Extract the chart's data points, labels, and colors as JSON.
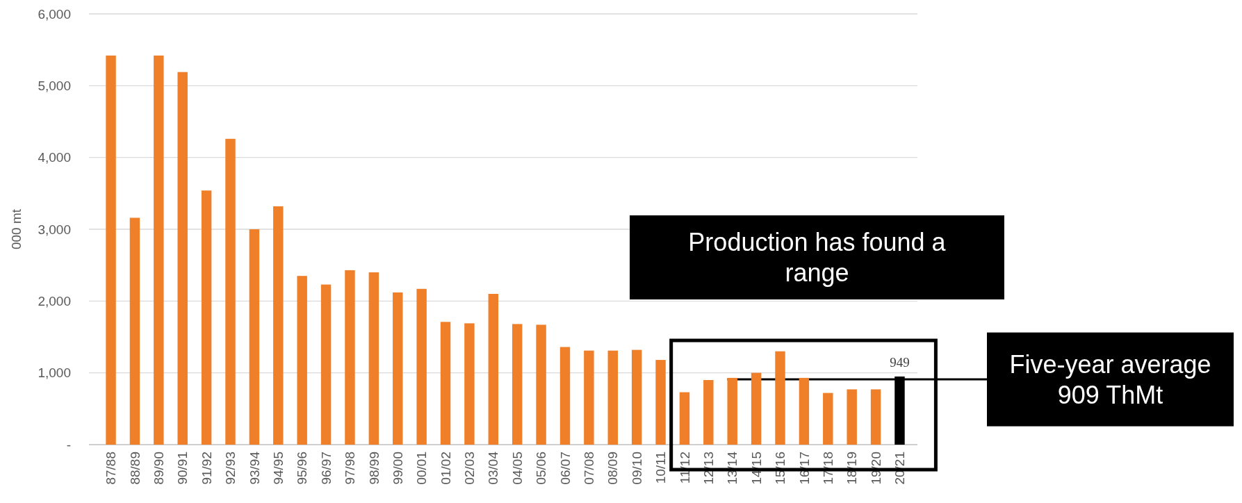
{
  "chart_data": {
    "type": "bar",
    "ylabel": "000 mt",
    "categories": [
      "87/88",
      "88/89",
      "89/90",
      "90/91",
      "91/92",
      "92/93",
      "93/94",
      "94/95",
      "95/96",
      "96/97",
      "97/98",
      "98/99",
      "99/00",
      "00/01",
      "01/02",
      "02/03",
      "03/04",
      "04/05",
      "05/06",
      "06/07",
      "07/08",
      "08/09",
      "09/10",
      "10/11",
      "11/12",
      "12/13",
      "13/14",
      "14/15",
      "15/16",
      "16/17",
      "17/18",
      "18/19",
      "19/20",
      "20/21"
    ],
    "values": [
      5420,
      3160,
      5420,
      5190,
      3540,
      4260,
      3000,
      3320,
      2350,
      2230,
      2430,
      2400,
      2120,
      2170,
      1710,
      1690,
      2100,
      1680,
      1670,
      1360,
      1310,
      1310,
      1320,
      1180,
      730,
      900,
      930,
      1000,
      1300,
      930,
      720,
      770,
      770,
      949
    ],
    "colors": [
      "#f07f2a",
      "#f07f2a",
      "#f07f2a",
      "#f07f2a",
      "#f07f2a",
      "#f07f2a",
      "#f07f2a",
      "#f07f2a",
      "#f07f2a",
      "#f07f2a",
      "#f07f2a",
      "#f07f2a",
      "#f07f2a",
      "#f07f2a",
      "#f07f2a",
      "#f07f2a",
      "#f07f2a",
      "#f07f2a",
      "#f07f2a",
      "#f07f2a",
      "#f07f2a",
      "#f07f2a",
      "#f07f2a",
      "#f07f2a",
      "#f07f2a",
      "#f07f2a",
      "#f07f2a",
      "#f07f2a",
      "#f07f2a",
      "#f07f2a",
      "#f07f2a",
      "#f07f2a",
      "#f07f2a",
      "#000000"
    ],
    "value_labels": [
      null,
      null,
      null,
      null,
      null,
      null,
      null,
      null,
      null,
      null,
      null,
      null,
      null,
      null,
      null,
      null,
      null,
      null,
      null,
      null,
      null,
      null,
      null,
      null,
      null,
      null,
      null,
      null,
      null,
      null,
      null,
      null,
      null,
      "949"
    ],
    "ylim": [
      0,
      6000
    ],
    "yticks": [
      {
        "value": 0,
        "label": "-"
      },
      {
        "value": 1000,
        "label": "1,000"
      },
      {
        "value": 2000,
        "label": "2,000"
      },
      {
        "value": 3000,
        "label": "3,000"
      },
      {
        "value": 4000,
        "label": "4,000"
      },
      {
        "value": 5000,
        "label": "5,000"
      },
      {
        "value": 6000,
        "label": "6,000"
      }
    ],
    "grid": "y",
    "ref_lines": [
      {
        "axis": "y",
        "value": 909,
        "label": "Five-year average 909 ThMt",
        "color": "#000000"
      }
    ],
    "annotations": [
      "Production has found a range"
    ]
  }
}
